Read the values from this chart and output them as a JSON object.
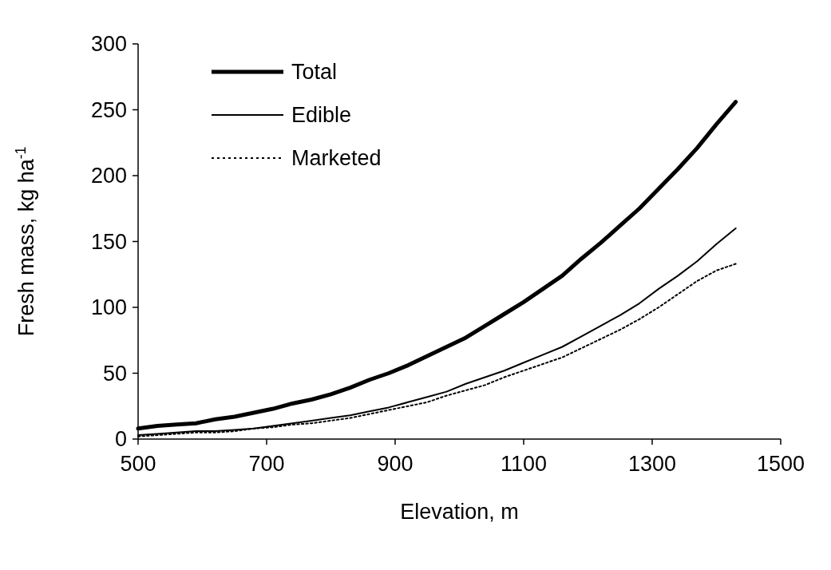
{
  "chart_data": {
    "type": "line",
    "xlabel": "Elevation, m",
    "ylabel": "Fresh mass, kg ha$^{-1}$",
    "x": [
      500,
      530,
      560,
      590,
      620,
      650,
      680,
      710,
      740,
      770,
      800,
      830,
      860,
      890,
      920,
      950,
      980,
      1010,
      1040,
      1070,
      1100,
      1130,
      1160,
      1190,
      1220,
      1250,
      1280,
      1310,
      1340,
      1370,
      1400,
      1430
    ],
    "series": [
      {
        "name": "Total",
        "color": "#000000",
        "line_style": "solid",
        "values": [
          8,
          10,
          11,
          12,
          15,
          17,
          20,
          23,
          27,
          30,
          34,
          39,
          45,
          50,
          56,
          63,
          70,
          77,
          86,
          95,
          104,
          114,
          124,
          137,
          149,
          162,
          175,
          190,
          205,
          221,
          239,
          256
        ]
      },
      {
        "name": "Edible",
        "color": "#000000",
        "line_style": "solid",
        "values": [
          3,
          4,
          5,
          6,
          6,
          7,
          8,
          10,
          12,
          14,
          16,
          18,
          21,
          24,
          28,
          32,
          36,
          42,
          47,
          52,
          58,
          64,
          70,
          78,
          86,
          94,
          103,
          114,
          124,
          135,
          148,
          160
        ]
      },
      {
        "name": "Marketed",
        "color": "#000000",
        "line_style": "dotted",
        "values": [
          2,
          3,
          4,
          5,
          5,
          6,
          8,
          9,
          11,
          12,
          14,
          16,
          19,
          22,
          25,
          28,
          33,
          37,
          41,
          47,
          52,
          57,
          62,
          69,
          76,
          83,
          91,
          100,
          110,
          120,
          128,
          133
        ]
      }
    ],
    "xlim": [
      500,
      1500
    ],
    "xticks": [
      500,
      700,
      900,
      1100,
      1300,
      1500
    ],
    "ylim": [
      0,
      300
    ],
    "yticks": [
      0,
      50,
      100,
      150,
      200,
      250,
      300
    ],
    "grid": false,
    "legend": "top left",
    "marker": "none"
  }
}
